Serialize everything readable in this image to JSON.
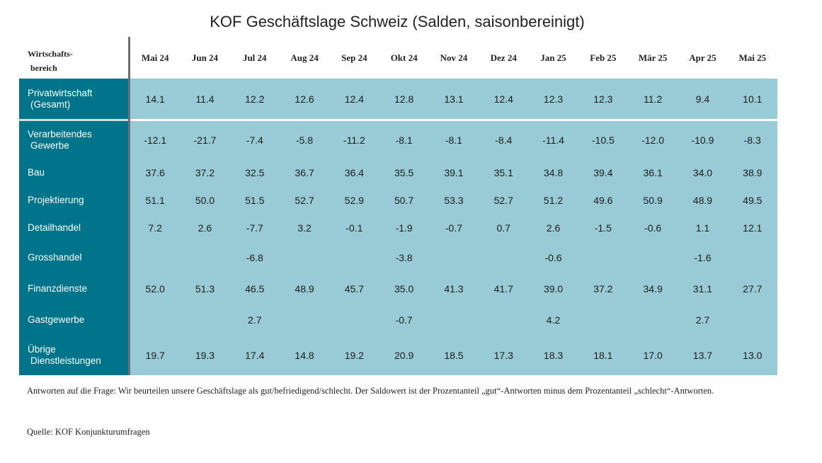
{
  "chart_data": {
    "type": "table",
    "title": "KOF Geschäftslage Schweiz (Salden, saisonbereinigt)",
    "row_header_label": [
      "Wirtschafts-",
      "bereich"
    ],
    "columns": [
      "Mai 24",
      "Jun 24",
      "Jul 24",
      "Aug 24",
      "Sep 24",
      "Okt 24",
      "Nov 24",
      "Dez 24",
      "Jan 25",
      "Feb 25",
      "Mär 25",
      "Apr 25",
      "Mai 25"
    ],
    "rows": [
      {
        "label": [
          "Privatwirtschaft",
          "(Gesamt)"
        ],
        "values": [
          "14.1",
          "11.4",
          "12.2",
          "12.6",
          "12.4",
          "12.8",
          "13.1",
          "12.4",
          "12.3",
          "12.3",
          "11.2",
          "9.4",
          "10.1"
        ]
      },
      {
        "label": [
          "Verarbeitendes",
          "Gewerbe"
        ],
        "values": [
          "-12.1",
          "-21.7",
          "-7.4",
          "-5.8",
          "-11.2",
          "-8.1",
          "-8.1",
          "-8.4",
          "-11.4",
          "-10.5",
          "-12.0",
          "-10.9",
          "-8.3"
        ]
      },
      {
        "label": [
          "Bau"
        ],
        "values": [
          "37.6",
          "37.2",
          "32.5",
          "36.7",
          "36.4",
          "35.5",
          "39.1",
          "35.1",
          "34.8",
          "39.4",
          "36.1",
          "34.0",
          "38.9"
        ]
      },
      {
        "label": [
          "Projektierung"
        ],
        "values": [
          "51.1",
          "50.0",
          "51.5",
          "52.7",
          "52.9",
          "50.7",
          "53.3",
          "52.7",
          "51.2",
          "49.6",
          "50.9",
          "48.9",
          "49.5"
        ]
      },
      {
        "label": [
          "Detailhandel"
        ],
        "values": [
          "7.2",
          "2.6",
          "-7.7",
          "3.2",
          "-0.1",
          "-1.9",
          "-0.7",
          "0.7",
          "2.6",
          "-1.5",
          "-0.6",
          "1.1",
          "12.1"
        ]
      },
      {
        "label": [
          "Grosshandel"
        ],
        "values": [
          "",
          "",
          "-6.8",
          "",
          "",
          "-3.8",
          "",
          "",
          "-0.6",
          "",
          "",
          "-1.6",
          ""
        ]
      },
      {
        "label": [
          "Finanzdienste"
        ],
        "values": [
          "52.0",
          "51.3",
          "46.5",
          "48.9",
          "45.7",
          "35.0",
          "41.3",
          "41.7",
          "39.0",
          "37.2",
          "34.9",
          "31.1",
          "27.7"
        ]
      },
      {
        "label": [
          "Gastgewerbe"
        ],
        "values": [
          "",
          "",
          "2.7",
          "",
          "",
          "-0.7",
          "",
          "",
          "4.2",
          "",
          "",
          "2.7",
          ""
        ]
      },
      {
        "label": [
          "Übrige",
          "Dienstleistungen"
        ],
        "values": [
          "19.7",
          "19.3",
          "17.4",
          "14.8",
          "19.2",
          "20.9",
          "18.5",
          "17.3",
          "18.3",
          "18.1",
          "17.0",
          "13.7",
          "13.0"
        ]
      }
    ]
  },
  "footnote": "Antworten auf die Frage: Wir beurteilen unsere Geschäftslage als gut/befriedigend/schlecht. Der Saldowert ist der Prozentanteil „gut“-Antworten minus dem Prozentanteil „schlecht“-Antworten.",
  "source": "Quelle: KOF Konjunkturumfragen",
  "colors": {
    "label_column": "#00748a",
    "value_cells": "#99cbd6",
    "separator": "#6f6f6f"
  }
}
